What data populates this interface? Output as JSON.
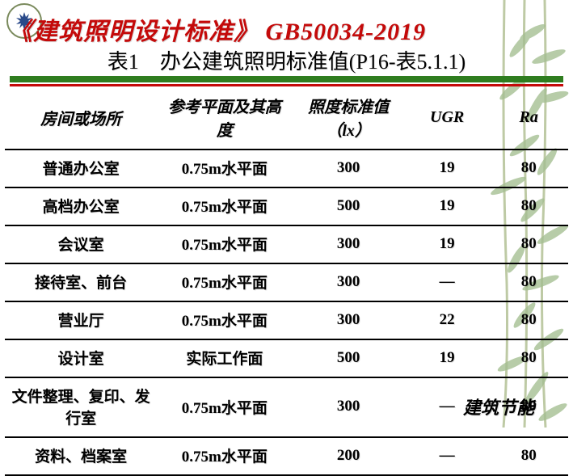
{
  "title_full": "《建筑照明设计标准》 GB50034-2019",
  "subtitle": "表1　办公建筑照明标准值(P16-表5.1.1)",
  "headers": {
    "room": "房间或场所",
    "ref": "参考平面及其高度",
    "lx": "照度标准值（lx）",
    "ugr": "UGR",
    "ra": "Ra"
  },
  "rows": [
    {
      "room": "普通办公室",
      "ref": "0.75m水平面",
      "lx": "300",
      "ugr": "19",
      "ra": "80"
    },
    {
      "room": "高档办公室",
      "ref": "0.75m水平面",
      "lx": "500",
      "ugr": "19",
      "ra": "80"
    },
    {
      "room": "会议室",
      "ref": "0.75m水平面",
      "lx": "300",
      "ugr": "19",
      "ra": "80"
    },
    {
      "room": "接待室、前台",
      "ref": "0.75m水平面",
      "lx": "300",
      "ugr": "—",
      "ra": "80"
    },
    {
      "room": "营业厅",
      "ref": "0.75m水平面",
      "lx": "300",
      "ugr": "22",
      "ra": "80"
    },
    {
      "room": "设计室",
      "ref": "实际工作面",
      "lx": "500",
      "ugr": "19",
      "ra": "80"
    },
    {
      "room": "文件整理、复印、发行室",
      "ref": "0.75m水平面",
      "lx": "300",
      "ugr": "—",
      "ra": "80"
    },
    {
      "room": "资料、档案室",
      "ref": "0.75m水平面",
      "lx": "200",
      "ugr": "—",
      "ra": "80"
    }
  ],
  "footer": "建筑节能",
  "colors": {
    "title": "#c40a0a",
    "bar_green": "#2f7d1f",
    "bar_red": "#c40a0a",
    "bamboo_leaf": "#5a8a3a",
    "bamboo_stem": "#8aa05c"
  }
}
